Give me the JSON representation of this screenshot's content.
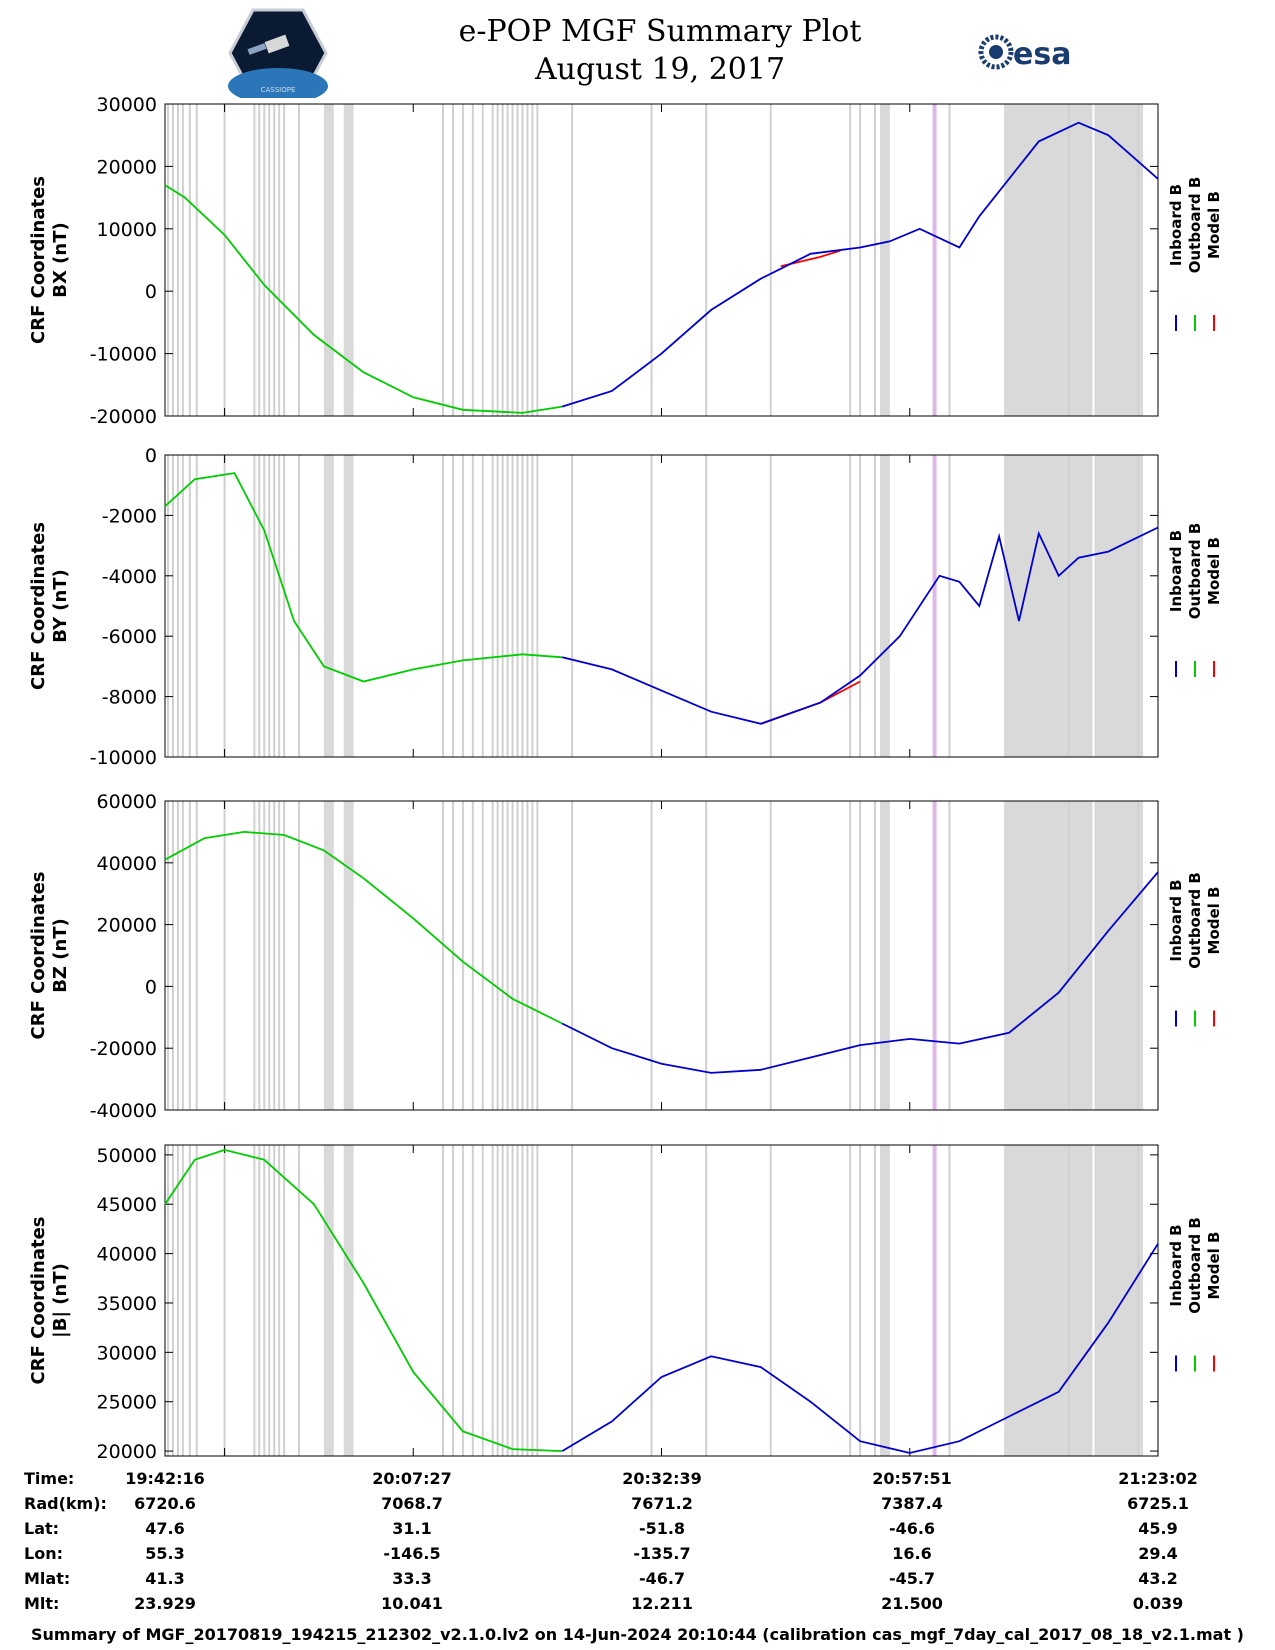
{
  "header": {
    "title_line1": "e-POP MGF Summary Plot",
    "title_line2": "August 19, 2017",
    "left_logo_text": "CASSIOPE",
    "right_logo_text": "esa"
  },
  "colors": {
    "inboard": "#0000cc",
    "outboard": "#00cc00",
    "model": "#ff0000",
    "shade": "#d9d9d9",
    "marker": "#e0b8e8"
  },
  "legend": [
    "Inboard B",
    "Outboard B",
    "Model B"
  ],
  "chart_data": [
    {
      "type": "line",
      "name": "BX",
      "ylabel_line1": "CRF Coordinates",
      "ylabel_line2": "BX (nT)",
      "ylim": [
        -20000,
        30000
      ],
      "yticks": [
        "30000",
        "20000",
        "10000",
        "0",
        "-10000",
        "-20000"
      ],
      "ytick_values": [
        30000,
        20000,
        10000,
        0,
        -10000,
        -20000
      ],
      "series": [
        {
          "name": "Outboard B",
          "x": [
            0,
            0.02,
            0.06,
            0.1,
            0.15,
            0.2,
            0.25,
            0.3,
            0.36,
            0.4
          ],
          "values": [
            17000,
            15000,
            9000,
            1000,
            -7000,
            -13000,
            -17000,
            -19000,
            -19500,
            -18500
          ]
        },
        {
          "name": "Model B",
          "x": [
            0.62,
            0.66,
            0.68
          ],
          "values": [
            4000,
            5500,
            6500
          ]
        },
        {
          "name": "Inboard B",
          "x": [
            0.4,
            0.45,
            0.5,
            0.55,
            0.6,
            0.65,
            0.7,
            0.73,
            0.76,
            0.8,
            0.82,
            0.85,
            0.88,
            0.92,
            0.95,
            1.0
          ],
          "values": [
            -18500,
            -16000,
            -10000,
            -3000,
            2000,
            6000,
            7000,
            8000,
            10000,
            7000,
            12000,
            18000,
            24000,
            27000,
            25000,
            18000
          ]
        }
      ]
    },
    {
      "type": "line",
      "name": "BY",
      "ylabel_line1": "CRF Coordinates",
      "ylabel_line2": "BY (nT)",
      "ylim": [
        -10000,
        0
      ],
      "yticks": [
        "0",
        "-2000",
        "-4000",
        "-6000",
        "-8000",
        "-10000"
      ],
      "ytick_values": [
        0,
        -2000,
        -4000,
        -6000,
        -8000,
        -10000
      ],
      "series": [
        {
          "name": "Outboard B",
          "x": [
            0,
            0.03,
            0.07,
            0.1,
            0.13,
            0.16,
            0.2,
            0.25,
            0.3,
            0.36,
            0.4
          ],
          "values": [
            -1700,
            -800,
            -600,
            -2500,
            -5500,
            -7000,
            -7500,
            -7100,
            -6800,
            -6600,
            -6700
          ]
        },
        {
          "name": "Model B",
          "x": [
            0.6,
            0.66,
            0.7
          ],
          "values": [
            -8900,
            -8200,
            -7500
          ]
        },
        {
          "name": "Inboard B",
          "x": [
            0.4,
            0.45,
            0.5,
            0.55,
            0.6,
            0.66,
            0.7,
            0.74,
            0.78,
            0.8,
            0.82,
            0.84,
            0.86,
            0.88,
            0.9,
            0.92,
            0.95,
            1.0
          ],
          "values": [
            -6700,
            -7100,
            -7800,
            -8500,
            -8900,
            -8200,
            -7300,
            -6000,
            -4000,
            -4200,
            -5000,
            -2700,
            -5500,
            -2600,
            -4000,
            -3400,
            -3200,
            -2400
          ]
        }
      ]
    },
    {
      "type": "line",
      "name": "BZ",
      "ylabel_line1": "CRF Coordinates",
      "ylabel_line2": "BZ (nT)",
      "ylim": [
        -40000,
        60000
      ],
      "yticks": [
        "60000",
        "40000",
        "20000",
        "0",
        "-20000",
        "-40000"
      ],
      "ytick_values": [
        60000,
        40000,
        20000,
        0,
        -20000,
        -40000
      ],
      "series": [
        {
          "name": "Outboard B",
          "x": [
            0,
            0.04,
            0.08,
            0.12,
            0.16,
            0.2,
            0.25,
            0.3,
            0.35,
            0.4
          ],
          "values": [
            41000,
            48000,
            50000,
            49000,
            44000,
            35000,
            22000,
            8000,
            -4000,
            -12000
          ]
        },
        {
          "name": "Inboard B",
          "x": [
            0.4,
            0.45,
            0.5,
            0.55,
            0.6,
            0.65,
            0.7,
            0.75,
            0.8,
            0.85,
            0.9,
            0.95,
            1.0
          ],
          "values": [
            -12000,
            -20000,
            -25000,
            -28000,
            -27000,
            -23000,
            -19000,
            -17000,
            -18500,
            -15000,
            -2000,
            18000,
            37000
          ]
        }
      ]
    },
    {
      "type": "line",
      "name": "|B|",
      "ylabel_line1": "CRF Coordinates",
      "ylabel_line2": "|B| (nT)",
      "ylim": [
        19500,
        51000
      ],
      "yticks": [
        "50000",
        "45000",
        "40000",
        "35000",
        "30000",
        "25000",
        "20000"
      ],
      "ytick_values": [
        50000,
        45000,
        40000,
        35000,
        30000,
        25000,
        20000
      ],
      "series": [
        {
          "name": "Outboard B",
          "x": [
            0,
            0.03,
            0.06,
            0.1,
            0.15,
            0.2,
            0.25,
            0.3,
            0.35,
            0.4
          ],
          "values": [
            45000,
            49500,
            50500,
            49500,
            45000,
            37000,
            28000,
            22000,
            20200,
            20000
          ]
        },
        {
          "name": "Inboard B",
          "x": [
            0.4,
            0.45,
            0.5,
            0.55,
            0.6,
            0.65,
            0.7,
            0.75,
            0.8,
            0.85,
            0.9,
            0.95,
            1.0
          ],
          "values": [
            20000,
            23000,
            27500,
            29600,
            28500,
            25000,
            21000,
            19800,
            21000,
            23500,
            26000,
            33000,
            41000
          ]
        }
      ]
    }
  ],
  "gaps": {
    "lines": [
      0.003,
      0.008,
      0.013,
      0.018,
      0.025,
      0.032,
      0.06,
      0.09,
      0.095,
      0.1,
      0.105,
      0.11,
      0.115,
      0.12,
      0.135,
      0.28,
      0.29,
      0.3,
      0.31,
      0.32,
      0.33,
      0.335,
      0.34,
      0.345,
      0.35,
      0.355,
      0.36,
      0.365,
      0.37,
      0.375,
      0.41,
      0.49,
      0.545,
      0.61,
      0.69,
      0.7,
      0.715,
      0.79,
      0.91,
      0.98
    ],
    "bands": [
      [
        0.16,
        0.17
      ],
      [
        0.18,
        0.19
      ],
      [
        0.72,
        0.73
      ],
      [
        0.845,
        0.985
      ]
    ],
    "light_lines": [
      0.935
    ],
    "marker": 0.775
  },
  "table": {
    "row_labels": [
      "Time:",
      "Rad(km):",
      "Lat:",
      "Lon:",
      "Mlat:",
      "Mlt:"
    ],
    "columns": [
      [
        "19:42:16",
        "6720.6",
        "47.6",
        "55.3",
        "41.3",
        "23.929"
      ],
      [
        "20:07:27",
        "7068.7",
        "31.1",
        "-146.5",
        "33.3",
        "10.041"
      ],
      [
        "20:32:39",
        "7671.2",
        "-51.8",
        "-135.7",
        "-46.7",
        "12.211"
      ],
      [
        "20:57:51",
        "7387.4",
        "-46.6",
        "16.6",
        "-45.7",
        "21.500"
      ],
      [
        "21:23:02",
        "6725.1",
        "45.9",
        "29.4",
        "43.2",
        "0.039"
      ]
    ]
  },
  "footer": "Summary of MGF_20170819_194215_212302_v2.1.0.lv2 on 14-Jun-2024 20:10:44 (calibration cas_mgf_7day_cal_2017_08_18_v2.1.mat )"
}
